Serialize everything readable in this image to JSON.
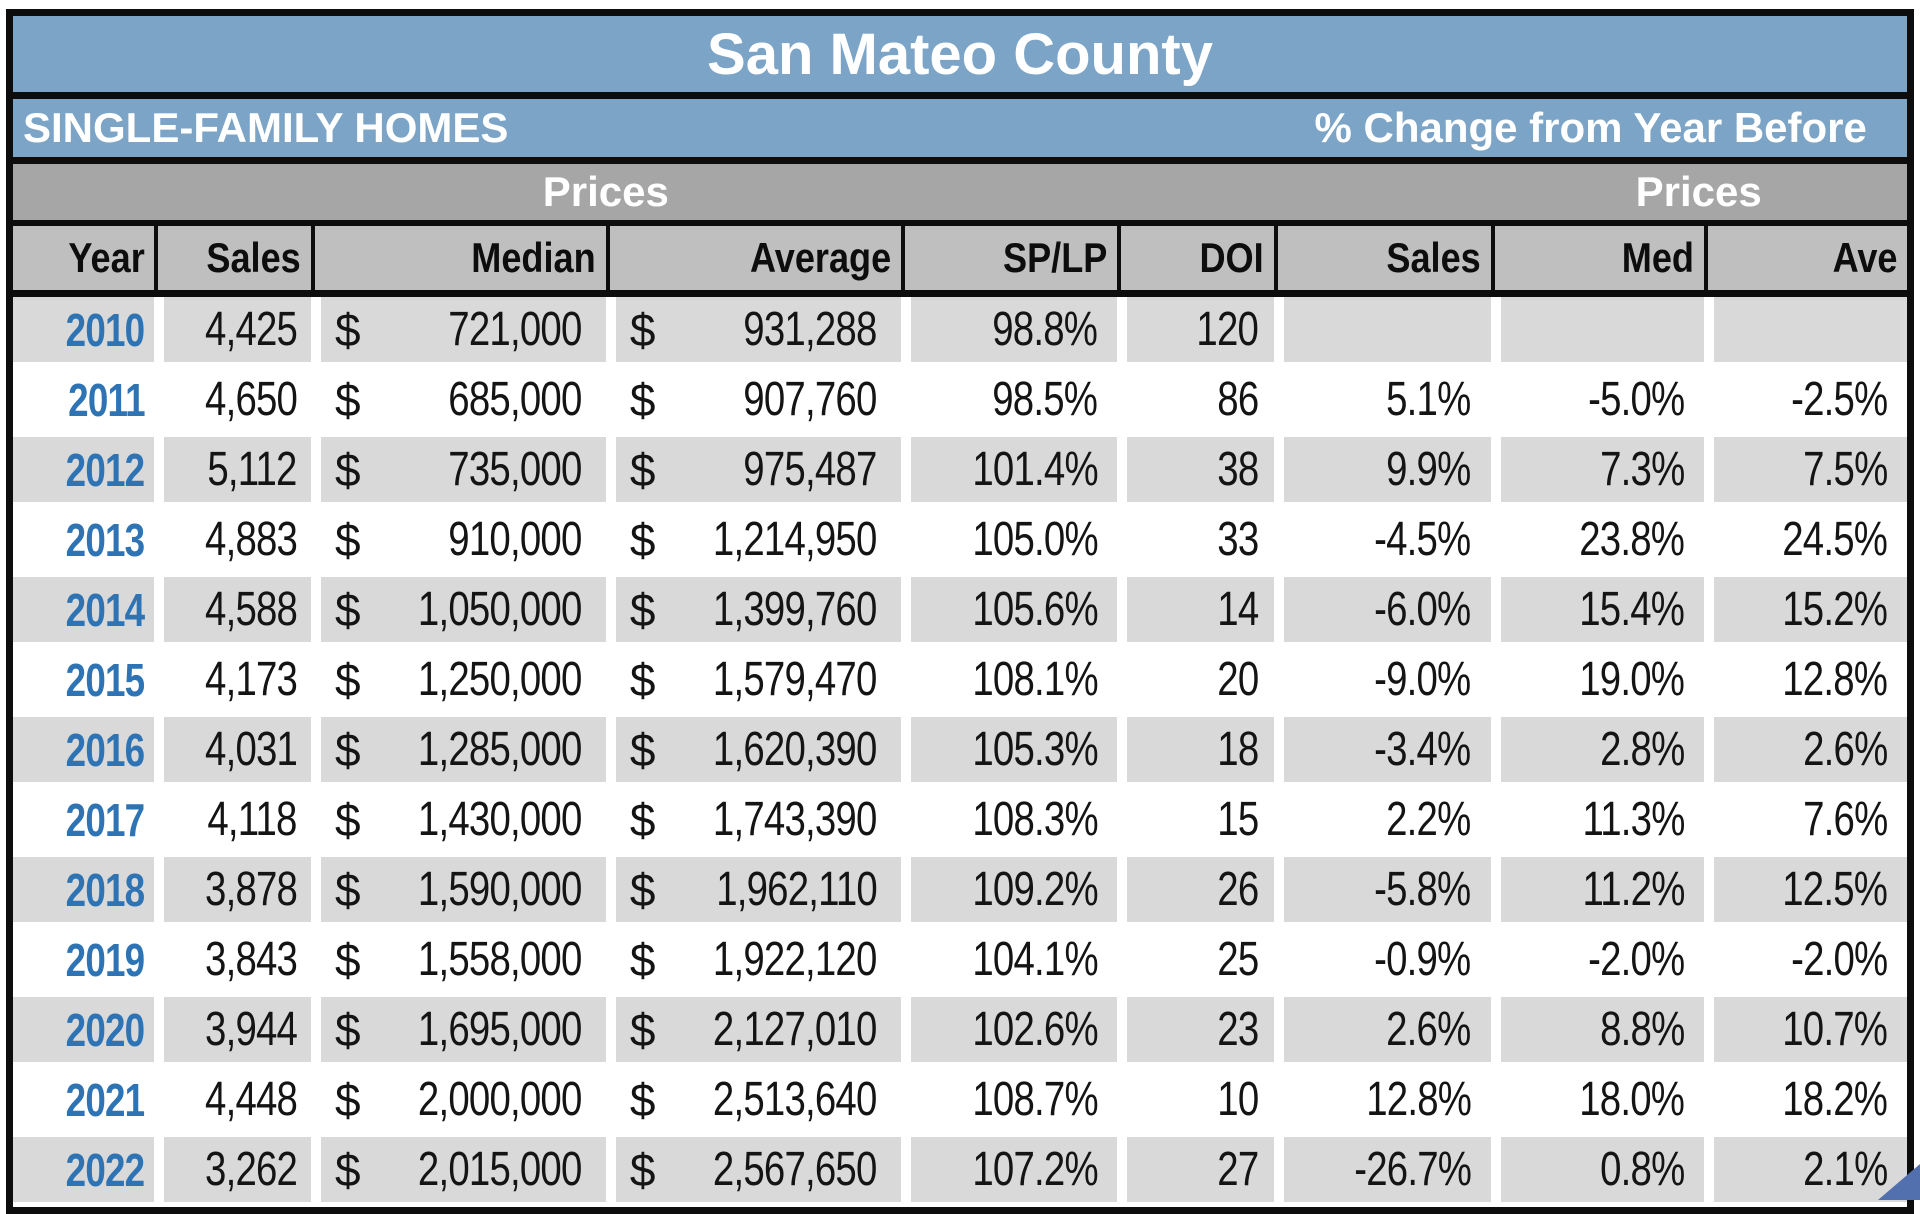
{
  "title": "San Mateo County",
  "subtitle_left": "SINGLE-FAMILY HOMES",
  "subtitle_right": "% Change from Year Before",
  "group_headers": {
    "prices_left": "Prices",
    "prices_right": "Prices"
  },
  "columns": [
    "Year",
    "Sales",
    "Median",
    "Average",
    "SP/LP",
    "DOI",
    "Sales",
    "Med",
    "Ave"
  ],
  "currency_symbol": "$",
  "colors": {
    "band_blue": "#7ba4c6",
    "group_gray": "#a6a6a6",
    "header_gray": "#bfbfbf",
    "row_shade_gray": "#d9d9d9",
    "year_blue": "#2e74b5",
    "border_black": "#0d0d0d",
    "corner_arrow_blue": "#5170ad",
    "text_white": "#ffffff"
  },
  "chart_data": {
    "type": "table",
    "title": "San Mateo County",
    "subtitle": "SINGLE-FAMILY HOMES",
    "column_groups": [
      {
        "label": "Prices",
        "over": [
          "Median",
          "Average"
        ]
      },
      {
        "label": "% Change from Year Before / Prices",
        "over": [
          "Sales",
          "Med",
          "Ave"
        ]
      }
    ],
    "columns": [
      "Year",
      "Sales",
      "Median ($)",
      "Average ($)",
      "SP/LP",
      "DOI",
      "Sales % chg",
      "Med % chg",
      "Ave % chg"
    ],
    "rows": [
      {
        "year": "2010",
        "sales": "4,425",
        "median": "721,000",
        "average": "931,288",
        "sp_lp": "98.8%",
        "doi": "120",
        "chg_sales": "",
        "chg_med": "",
        "chg_ave": ""
      },
      {
        "year": "2011",
        "sales": "4,650",
        "median": "685,000",
        "average": "907,760",
        "sp_lp": "98.5%",
        "doi": "86",
        "chg_sales": "5.1%",
        "chg_med": "-5.0%",
        "chg_ave": "-2.5%"
      },
      {
        "year": "2012",
        "sales": "5,112",
        "median": "735,000",
        "average": "975,487",
        "sp_lp": "101.4%",
        "doi": "38",
        "chg_sales": "9.9%",
        "chg_med": "7.3%",
        "chg_ave": "7.5%"
      },
      {
        "year": "2013",
        "sales": "4,883",
        "median": "910,000",
        "average": "1,214,950",
        "sp_lp": "105.0%",
        "doi": "33",
        "chg_sales": "-4.5%",
        "chg_med": "23.8%",
        "chg_ave": "24.5%"
      },
      {
        "year": "2014",
        "sales": "4,588",
        "median": "1,050,000",
        "average": "1,399,760",
        "sp_lp": "105.6%",
        "doi": "14",
        "chg_sales": "-6.0%",
        "chg_med": "15.4%",
        "chg_ave": "15.2%"
      },
      {
        "year": "2015",
        "sales": "4,173",
        "median": "1,250,000",
        "average": "1,579,470",
        "sp_lp": "108.1%",
        "doi": "20",
        "chg_sales": "-9.0%",
        "chg_med": "19.0%",
        "chg_ave": "12.8%"
      },
      {
        "year": "2016",
        "sales": "4,031",
        "median": "1,285,000",
        "average": "1,620,390",
        "sp_lp": "105.3%",
        "doi": "18",
        "chg_sales": "-3.4%",
        "chg_med": "2.8%",
        "chg_ave": "2.6%"
      },
      {
        "year": "2017",
        "sales": "4,118",
        "median": "1,430,000",
        "average": "1,743,390",
        "sp_lp": "108.3%",
        "doi": "15",
        "chg_sales": "2.2%",
        "chg_med": "11.3%",
        "chg_ave": "7.6%"
      },
      {
        "year": "2018",
        "sales": "3,878",
        "median": "1,590,000",
        "average": "1,962,110",
        "sp_lp": "109.2%",
        "doi": "26",
        "chg_sales": "-5.8%",
        "chg_med": "11.2%",
        "chg_ave": "12.5%"
      },
      {
        "year": "2019",
        "sales": "3,843",
        "median": "1,558,000",
        "average": "1,922,120",
        "sp_lp": "104.1%",
        "doi": "25",
        "chg_sales": "-0.9%",
        "chg_med": "-2.0%",
        "chg_ave": "-2.0%"
      },
      {
        "year": "2020",
        "sales": "3,944",
        "median": "1,695,000",
        "average": "2,127,010",
        "sp_lp": "102.6%",
        "doi": "23",
        "chg_sales": "2.6%",
        "chg_med": "8.8%",
        "chg_ave": "10.7%"
      },
      {
        "year": "2021",
        "sales": "4,448",
        "median": "2,000,000",
        "average": "2,513,640",
        "sp_lp": "108.7%",
        "doi": "10",
        "chg_sales": "12.8%",
        "chg_med": "18.0%",
        "chg_ave": "18.2%"
      },
      {
        "year": "2022",
        "sales": "3,262",
        "median": "2,015,000",
        "average": "2,567,650",
        "sp_lp": "107.2%",
        "doi": "27",
        "chg_sales": "-26.7%",
        "chg_med": "0.8%",
        "chg_ave": "2.1%"
      }
    ]
  }
}
